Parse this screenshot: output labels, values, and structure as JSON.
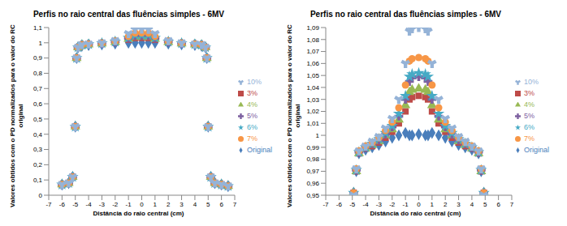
{
  "chart_data": [
    {
      "type": "scatter",
      "title": "Perfis no raio central das fluências simples - 6MV",
      "x_label": "Distância do raio central (cm)",
      "y_label": "Valores obtidos com o PD normalizados para o valor do RC original",
      "x": [
        -6,
        -5.5,
        -5.2,
        -5,
        -4.9,
        -4.8,
        -4.5,
        -4,
        -3,
        -2,
        -1,
        -0.5,
        0,
        0.5,
        1,
        2,
        3,
        4,
        4.5,
        4.8,
        4.9,
        5,
        5.2,
        5.5,
        6,
        6.5
      ],
      "xlim": [
        -7,
        7
      ],
      "xticks": [
        -7,
        -6,
        -5,
        -4,
        -3,
        -2,
        -1,
        0,
        1,
        2,
        3,
        4,
        5,
        6,
        7
      ],
      "ylim": [
        0,
        1.1
      ],
      "yticks": [
        0,
        {
          "value": 0.1,
          "label": "0,1"
        },
        {
          "value": 0.2,
          "label": "0,2"
        },
        {
          "value": 0.3,
          "label": "0,3"
        },
        {
          "value": 0.4,
          "label": "0,4"
        },
        {
          "value": 0.5,
          "label": "0,5"
        },
        {
          "value": 0.6,
          "label": "0,6"
        },
        {
          "value": 0.7,
          "label": "0,7"
        },
        {
          "value": 0.8,
          "label": "0,8"
        },
        {
          "value": 0.9,
          "label": "0,9"
        },
        1,
        {
          "value": 1.1,
          "label": "1,1"
        }
      ],
      "grid": false,
      "legend": "right",
      "series": [
        {
          "name": "Original",
          "color": "#4a7ebb",
          "marker": "diamond",
          "values": [
            0.07,
            0.08,
            0.12,
            0.45,
            0.9,
            0.97,
            0.98,
            0.985,
            0.99,
            0.995,
            1.0,
            1.0,
            1.0,
            1.0,
            1.0,
            0.995,
            0.99,
            0.985,
            0.98,
            0.97,
            0.9,
            0.45,
            0.12,
            0.08,
            0.07,
            0.06
          ]
        },
        {
          "name": "3%",
          "color": "#be4b48",
          "marker": "square",
          "values": [
            0.07,
            0.08,
            0.12,
            0.45,
            0.9,
            0.97,
            0.985,
            0.989,
            0.994,
            1.003,
            1.02,
            1.032,
            1.033,
            1.032,
            1.02,
            1.003,
            0.994,
            0.989,
            0.985,
            0.97,
            0.9,
            0.45,
            0.12,
            0.08,
            0.07,
            0.06
          ]
        },
        {
          "name": "4%",
          "color": "#98b954",
          "marker": "triangle",
          "values": [
            0.07,
            0.08,
            0.12,
            0.45,
            0.9,
            0.97,
            0.985,
            0.989,
            0.995,
            1.005,
            1.025,
            1.038,
            1.039,
            1.038,
            1.025,
            1.005,
            0.995,
            0.989,
            0.985,
            0.97,
            0.9,
            0.45,
            0.12,
            0.08,
            0.07,
            0.06
          ]
        },
        {
          "name": "5%",
          "color": "#7d60a0",
          "marker": "cross",
          "values": [
            0.07,
            0.08,
            0.12,
            0.45,
            0.9,
            0.97,
            0.986,
            0.99,
            0.996,
            1.007,
            1.03,
            1.048,
            1.049,
            1.048,
            1.03,
            1.007,
            0.996,
            0.99,
            0.986,
            0.97,
            0.9,
            0.45,
            0.12,
            0.08,
            0.07,
            0.06
          ]
        },
        {
          "name": "6%",
          "color": "#46aac5",
          "marker": "star",
          "values": [
            0.07,
            0.08,
            0.12,
            0.45,
            0.9,
            0.97,
            0.986,
            0.99,
            0.997,
            1.008,
            1.033,
            1.051,
            1.052,
            1.051,
            1.033,
            1.008,
            0.997,
            0.99,
            0.986,
            0.97,
            0.9,
            0.45,
            0.12,
            0.08,
            0.07,
            0.06
          ]
        },
        {
          "name": "7%",
          "color": "#f79646",
          "marker": "circle",
          "values": [
            0.07,
            0.08,
            0.12,
            0.45,
            0.9,
            0.97,
            0.987,
            0.991,
            0.998,
            1.011,
            1.042,
            1.064,
            1.065,
            1.064,
            1.042,
            1.011,
            0.998,
            0.991,
            0.987,
            0.97,
            0.9,
            0.45,
            0.12,
            0.08,
            0.07,
            0.06
          ]
        },
        {
          "name": "10%",
          "color": "#95b3d7",
          "marker": "wye",
          "values": [
            0.07,
            0.08,
            0.12,
            0.45,
            0.9,
            0.97,
            0.987,
            0.991,
            0.999,
            1.014,
            1.06,
            1.089,
            1.09,
            1.089,
            1.06,
            1.014,
            0.999,
            0.991,
            0.987,
            0.97,
            0.9,
            0.45,
            0.12,
            0.08,
            0.07,
            0.06
          ]
        }
      ]
    },
    {
      "type": "scatter",
      "title": "Perfis no raio central das fluências simples - 6MV",
      "x_label": "Distância do raio central (cm)",
      "y_label": "Valores obtidos com o PD normalizados para o valor do RC original",
      "x": [
        -4.9,
        -4.7,
        -4.5,
        -4,
        -3.5,
        -3,
        -2.5,
        -2,
        -1.5,
        -1,
        -0.7,
        -0.5,
        0,
        0.5,
        0.7,
        1,
        1.5,
        2,
        2.5,
        3,
        3.5,
        4,
        4.5,
        4.7,
        4.9
      ],
      "xlim": [
        -7,
        7
      ],
      "xticks": [
        -7,
        -6,
        -5,
        -4,
        -3,
        -2,
        -1,
        0,
        1,
        2,
        3,
        4,
        5,
        6,
        7
      ],
      "ylim": [
        0.95,
        1.09
      ],
      "yticks": [
        {
          "value": 0.95,
          "label": "0,95"
        },
        {
          "value": 0.96,
          "label": "0,96"
        },
        {
          "value": 0.97,
          "label": "0,97"
        },
        {
          "value": 0.98,
          "label": "0,98"
        },
        {
          "value": 0.99,
          "label": "0,99"
        },
        1,
        {
          "value": 1.01,
          "label": "1,01"
        },
        {
          "value": 1.02,
          "label": "1,02"
        },
        {
          "value": 1.03,
          "label": "1,03"
        },
        {
          "value": 1.04,
          "label": "1,04"
        },
        {
          "value": 1.05,
          "label": "1,05"
        },
        {
          "value": 1.06,
          "label": "1,06"
        },
        {
          "value": 1.07,
          "label": "1,07"
        },
        {
          "value": 1.08,
          "label": "1,08"
        },
        {
          "value": 1.09,
          "label": "1,09"
        }
      ],
      "grid": false,
      "legend": "right",
      "series": [
        {
          "name": "Original",
          "color": "#4a7ebb",
          "marker": "diamond",
          "values": [
            0.952,
            0.97,
            0.985,
            0.988,
            0.99,
            0.992,
            0.995,
            0.998,
            1.0,
            1.002,
            1.0,
            1.0,
            1.001,
            1.0,
            1.0,
            1.002,
            1.0,
            0.998,
            0.995,
            0.992,
            0.99,
            0.988,
            0.985,
            0.97,
            0.952
          ]
        },
        {
          "name": "3%",
          "color": "#be4b48",
          "marker": "square",
          "values": [
            0.952,
            0.97,
            0.985,
            0.989,
            0.991,
            0.994,
            0.998,
            1.003,
            1.01,
            1.02,
            1.03,
            1.032,
            1.033,
            1.032,
            1.03,
            1.02,
            1.01,
            1.003,
            0.998,
            0.994,
            0.991,
            0.989,
            0.985,
            0.97,
            0.952
          ]
        },
        {
          "name": "4%",
          "color": "#98b954",
          "marker": "triangle",
          "values": [
            0.952,
            0.97,
            0.985,
            0.989,
            0.992,
            0.995,
            1.0,
            1.005,
            1.013,
            1.025,
            1.036,
            1.038,
            1.039,
            1.038,
            1.036,
            1.025,
            1.013,
            1.005,
            1.0,
            0.995,
            0.992,
            0.989,
            0.985,
            0.97,
            0.952
          ]
        },
        {
          "name": "5%",
          "color": "#7d60a0",
          "marker": "cross",
          "values": [
            0.952,
            0.971,
            0.986,
            0.99,
            0.993,
            0.996,
            1.001,
            1.007,
            1.016,
            1.03,
            1.045,
            1.048,
            1.049,
            1.048,
            1.045,
            1.03,
            1.016,
            1.007,
            1.001,
            0.996,
            0.993,
            0.99,
            0.986,
            0.971,
            0.952
          ]
        },
        {
          "name": "6%",
          "color": "#46aac5",
          "marker": "star",
          "values": [
            0.952,
            0.971,
            0.986,
            0.99,
            0.993,
            0.997,
            1.002,
            1.008,
            1.018,
            1.033,
            1.049,
            1.051,
            1.052,
            1.051,
            1.049,
            1.033,
            1.018,
            1.008,
            1.002,
            0.997,
            0.993,
            0.99,
            0.986,
            0.971,
            0.952
          ]
        },
        {
          "name": "7%",
          "color": "#f79646",
          "marker": "circle",
          "values": [
            0.952,
            0.972,
            0.987,
            0.991,
            0.994,
            0.998,
            1.004,
            1.011,
            1.023,
            1.042,
            1.062,
            1.064,
            1.065,
            1.064,
            1.062,
            1.042,
            1.023,
            1.011,
            1.004,
            0.998,
            0.994,
            0.991,
            0.987,
            0.972,
            0.952
          ]
        },
        {
          "name": "10%",
          "color": "#95b3d7",
          "marker": "wye",
          "values": [
            0.95,
            0.972,
            0.987,
            0.991,
            0.995,
            0.999,
            1.006,
            1.014,
            1.03,
            1.06,
            1.087,
            1.089,
            1.09,
            1.089,
            1.087,
            1.06,
            1.03,
            1.014,
            1.006,
            0.999,
            0.995,
            0.991,
            0.987,
            0.972,
            0.95
          ]
        }
      ]
    }
  ]
}
